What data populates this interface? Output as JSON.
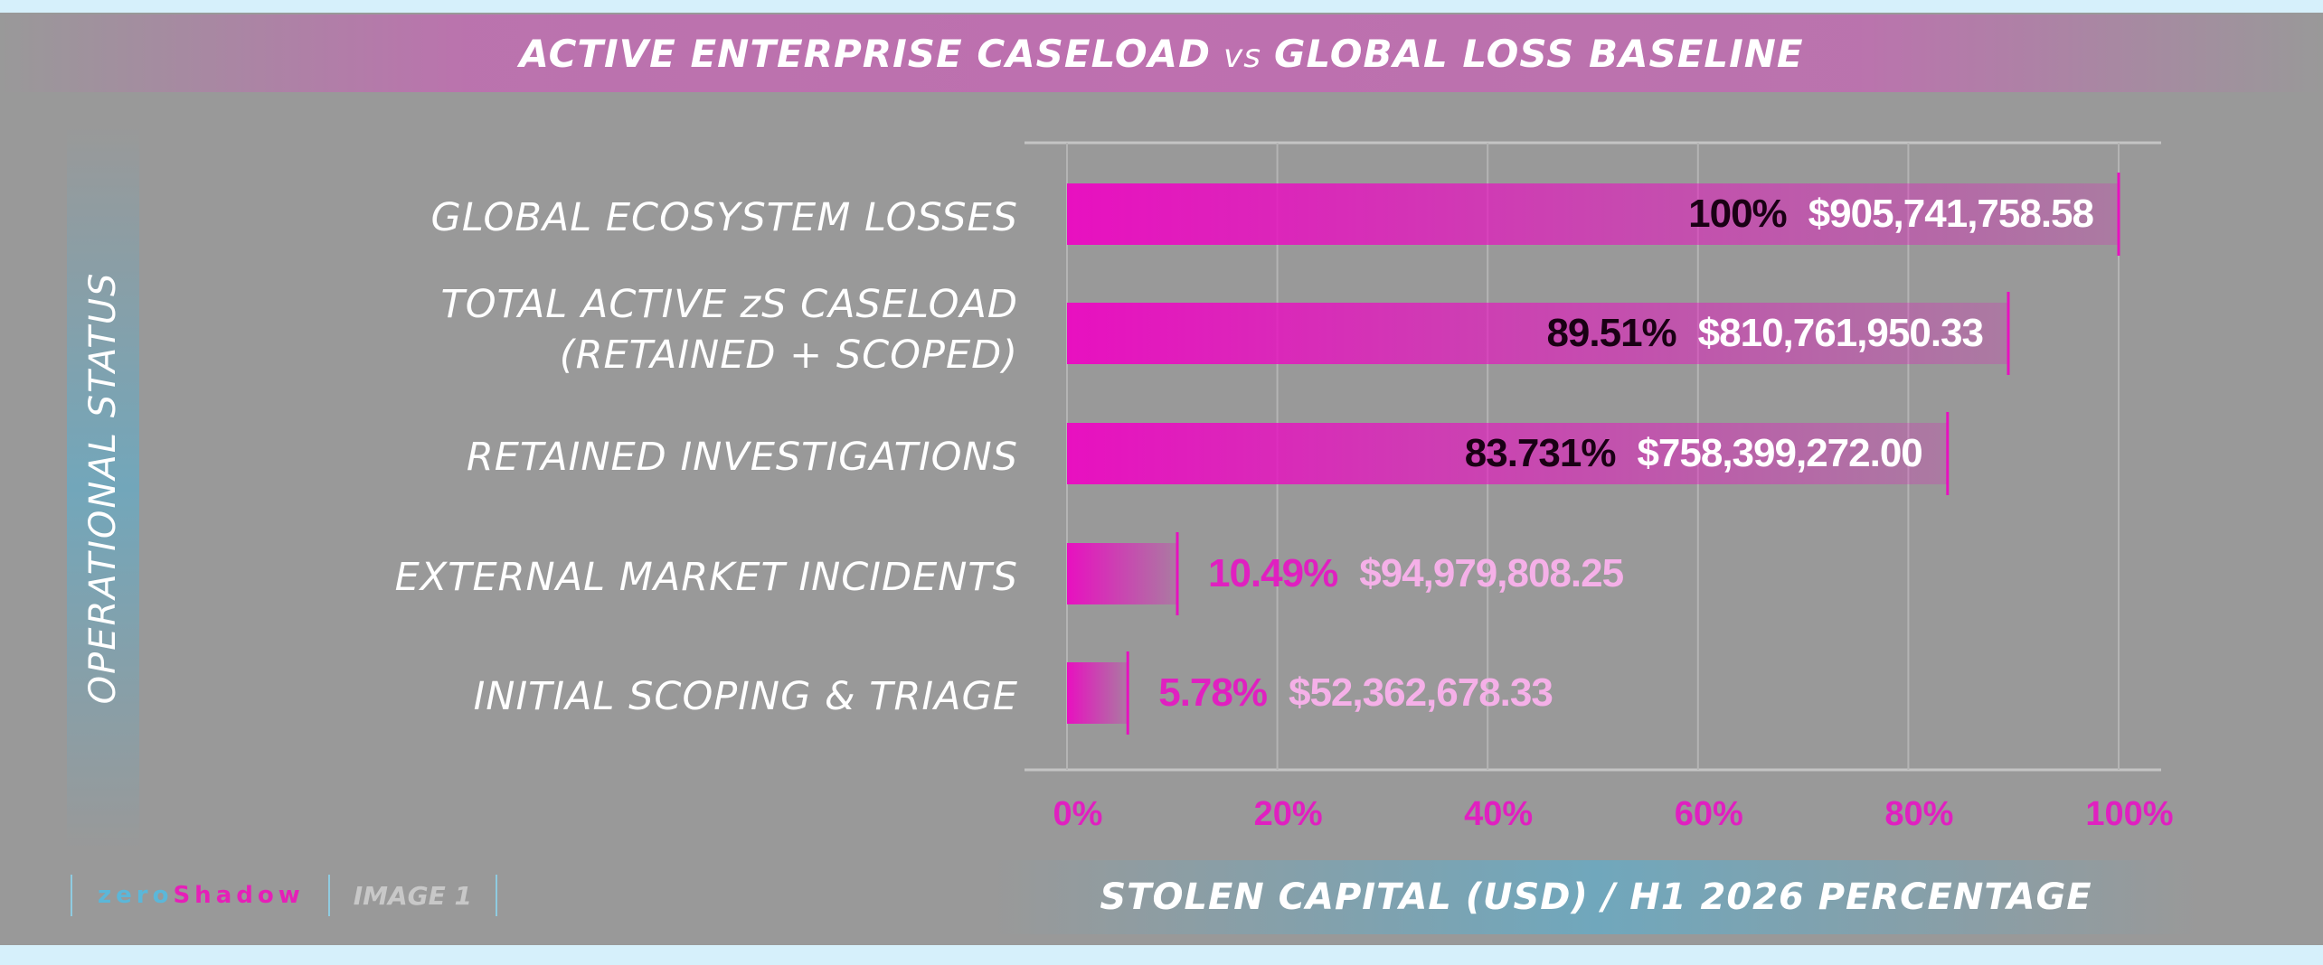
{
  "header": {
    "title_left": "ACTIVE ENTERPRISE CASELOAD",
    "title_vs": "vs",
    "title_right": "GLOBAL LOSS BASELINE"
  },
  "side_title": "OPERATIONAL STATUS",
  "footer": {
    "brand_zero": "zero",
    "brand_shadow": "Shadow",
    "image_tag": "IMAGE 1"
  },
  "colors": {
    "bar_magenta": "#e810c0",
    "label_dark": "#1a0014",
    "label_light": "#ffffff",
    "pct_outside": "#e020c0",
    "usd_outside": "#f5b0e8",
    "tick": "#e020c0"
  },
  "chart_data": {
    "type": "bar",
    "orientation": "horizontal",
    "categories": [
      [
        "GLOBAL ECOSYSTEM LOSSES"
      ],
      [
        "TOTAL ACTIVE zS CASELOAD",
        "(RETAINED + SCOPED)"
      ],
      [
        "RETAINED INVESTIGATIONS"
      ],
      [
        "EXTERNAL MARKET INCIDENTS"
      ],
      [
        "INITIAL SCOPING & TRIAGE"
      ]
    ],
    "values": [
      100,
      89.51,
      83.731,
      10.49,
      5.78
    ],
    "pct_labels": [
      "100%",
      "89.51%",
      "83.731%",
      "10.49%",
      "5.78%"
    ],
    "usd_labels": [
      "$905,741,758.58",
      "$810,761,950.33",
      "$758,399,272.00",
      "$94,979,808.25",
      "$52,362,678.33"
    ],
    "xlim": [
      0,
      100
    ],
    "xticks": [
      "0%",
      "20%",
      "40%",
      "60%",
      "80%",
      "100%"
    ],
    "xlabel": "STOLEN CAPITAL (USD) / H1 2026 PERCENTAGE",
    "grid": true
  }
}
